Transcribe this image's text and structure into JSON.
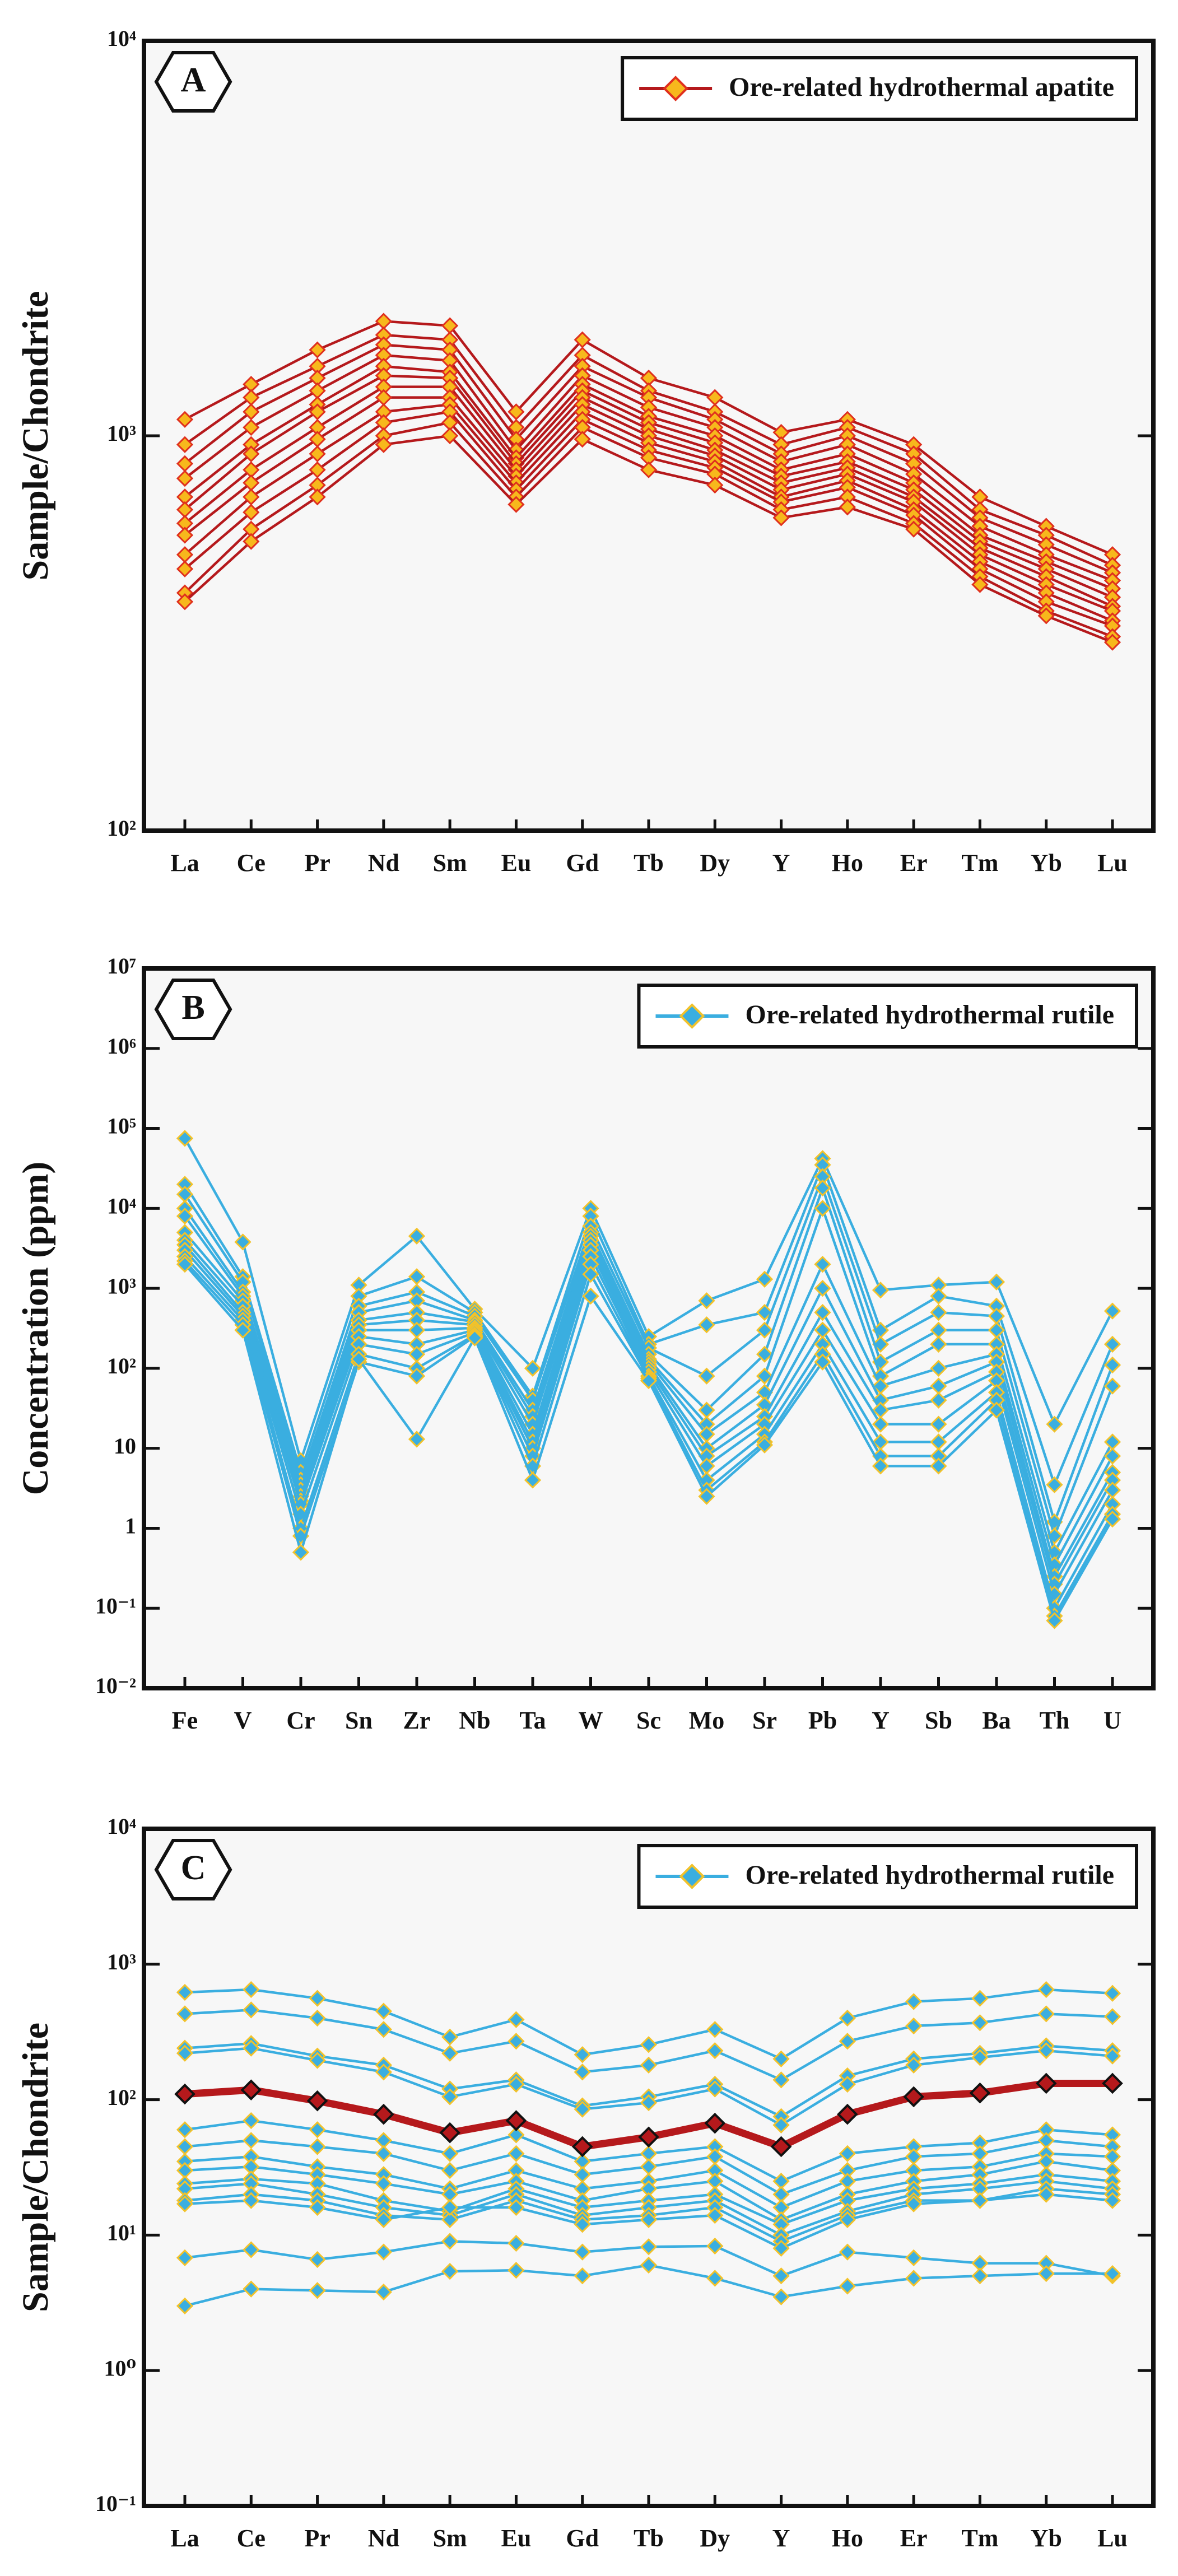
{
  "chart_data": [
    {
      "type": "line",
      "panel_label": "A",
      "ylabel": "Sample/Chondrite",
      "log_scale": true,
      "legend": "Ore-related hydrothermal apatite",
      "legend_position": "upper right",
      "color": "#b5191c",
      "marker_fill": "#f7b81c",
      "marker_edge": "#e0301e",
      "categories": [
        "La",
        "Ce",
        "Pr",
        "Nd",
        "Sm",
        "Eu",
        "Gd",
        "Tb",
        "Dy",
        "Y",
        "Ho",
        "Er",
        "Tm",
        "Yb",
        "Lu"
      ],
      "ylim": [
        100,
        10000
      ],
      "yticks": [
        {
          "value": 100,
          "label": "10²"
        },
        {
          "value": 1000,
          "label": "10³"
        },
        {
          "value": 10000,
          "label": "10⁴"
        }
      ],
      "series": [
        {
          "values": [
            1100,
            1350,
            1650,
            1950,
            1900,
            1150,
            1750,
            1400,
            1250,
            1020,
            1100,
            950,
            700,
            590,
            500
          ]
        },
        {
          "values": [
            950,
            1250,
            1500,
            1800,
            1750,
            1050,
            1600,
            1300,
            1150,
            950,
            1050,
            900,
            650,
            560,
            470
          ]
        },
        {
          "values": [
            850,
            1150,
            1400,
            1700,
            1650,
            980,
            1500,
            1250,
            1100,
            900,
            1000,
            850,
            620,
            530,
            450
          ]
        },
        {
          "values": [
            780,
            1050,
            1300,
            1600,
            1550,
            920,
            1420,
            1180,
            1050,
            860,
            950,
            800,
            590,
            500,
            430
          ]
        },
        {
          "values": [
            700,
            950,
            1200,
            1500,
            1450,
            880,
            1350,
            1120,
            1000,
            820,
            900,
            760,
            560,
            480,
            410
          ]
        },
        {
          "values": [
            650,
            900,
            1150,
            1420,
            1400,
            850,
            1300,
            1080,
            960,
            790,
            860,
            730,
            540,
            460,
            390
          ]
        },
        {
          "values": [
            600,
            820,
            1050,
            1330,
            1330,
            820,
            1250,
            1040,
            920,
            760,
            830,
            700,
            520,
            440,
            370
          ]
        },
        {
          "values": [
            560,
            760,
            980,
            1250,
            1250,
            790,
            1200,
            1000,
            890,
            730,
            800,
            680,
            500,
            420,
            360
          ]
        },
        {
          "values": [
            500,
            700,
            900,
            1150,
            1200,
            760,
            1150,
            960,
            860,
            700,
            770,
            650,
            480,
            400,
            340
          ]
        },
        {
          "values": [
            460,
            640,
            820,
            1080,
            1150,
            730,
            1100,
            920,
            830,
            680,
            740,
            630,
            460,
            380,
            330
          ]
        },
        {
          "values": [
            400,
            580,
            750,
            1000,
            1080,
            700,
            1050,
            880,
            800,
            650,
            700,
            600,
            440,
            360,
            310
          ]
        },
        {
          "values": [
            380,
            540,
            700,
            950,
            1000,
            670,
            980,
            820,
            750,
            620,
            660,
            580,
            420,
            350,
            300
          ]
        }
      ]
    },
    {
      "type": "line",
      "panel_label": "B",
      "ylabel": "Concentration (ppm)",
      "log_scale": true,
      "legend": "Ore-related hydrothermal rutile",
      "legend_position": "upper right",
      "color": "#3aaee0",
      "marker_fill": "#3aaee0",
      "marker_edge": "#f2c22a",
      "categories": [
        "Fe",
        "V",
        "Cr",
        "Sn",
        "Zr",
        "Nb",
        "Ta",
        "W",
        "Sc",
        "Mo",
        "Sr",
        "Pb",
        "Y",
        "Sb",
        "Ba",
        "Th",
        "U"
      ],
      "ylim": [
        0.01,
        10000000
      ],
      "yticks": [
        {
          "value": 0.01,
          "label": "10⁻²"
        },
        {
          "value": 0.1,
          "label": "10⁻¹"
        },
        1,
        10,
        {
          "value": 100,
          "label": "10²"
        },
        {
          "value": 1000,
          "label": "10³"
        },
        {
          "value": 10000,
          "label": "10⁴"
        },
        {
          "value": 100000,
          "label": "10⁵"
        },
        {
          "value": 1000000,
          "label": "10⁶"
        },
        {
          "value": 10000000,
          "label": "10⁷"
        }
      ],
      "series": [
        {
          "values": [
            75000,
            3800,
            7,
            1100,
            4500,
            550,
            100,
            10000,
            250,
            700,
            1300,
            42000,
            950,
            1100,
            1200,
            20,
            520
          ]
        },
        {
          "values": [
            20000,
            1400,
            5,
            800,
            1400,
            500,
            45,
            8000,
            200,
            350,
            500,
            35000,
            300,
            800,
            600,
            3.5,
            200
          ]
        },
        {
          "values": [
            15000,
            1200,
            4,
            600,
            900,
            450,
            40,
            6000,
            180,
            80,
            300,
            25000,
            200,
            500,
            450,
            1.2,
            110
          ]
        },
        {
          "values": [
            10000,
            900,
            3.5,
            500,
            700,
            400,
            30,
            5000,
            150,
            30,
            150,
            18000,
            120,
            300,
            300,
            0.8,
            60
          ]
        },
        {
          "values": [
            8000,
            800,
            3,
            400,
            500,
            380,
            25,
            4500,
            130,
            20,
            80,
            10000,
            80,
            200,
            200,
            0.5,
            12
          ]
        },
        {
          "values": [
            5000,
            700,
            2.5,
            350,
            400,
            350,
            20,
            4000,
            120,
            15,
            50,
            2000,
            60,
            100,
            150,
            0.35,
            8
          ]
        },
        {
          "values": [
            4000,
            600,
            2.2,
            300,
            300,
            320,
            15,
            3500,
            110,
            10,
            35,
            1000,
            40,
            60,
            120,
            0.25,
            5
          ]
        },
        {
          "values": [
            3500,
            500,
            2,
            250,
            200,
            300,
            12,
            3000,
            100,
            8,
            25,
            500,
            30,
            40,
            90,
            0.2,
            4
          ]
        },
        {
          "values": [
            3000,
            450,
            1.5,
            200,
            150,
            280,
            10,
            2500,
            90,
            6,
            20,
            300,
            20,
            20,
            70,
            0.15,
            3
          ]
        },
        {
          "values": [
            2500,
            400,
            1,
            150,
            100,
            260,
            8,
            2000,
            80,
            4,
            15,
            200,
            12,
            12,
            50,
            0.1,
            2
          ]
        },
        {
          "values": [
            2200,
            350,
            0.8,
            120,
            80,
            250,
            6,
            1500,
            75,
            3,
            12,
            150,
            8,
            8,
            40,
            0.08,
            1.5
          ]
        },
        {
          "values": [
            2000,
            300,
            0.5,
            130,
            13,
            240,
            4,
            800,
            70,
            2.5,
            11,
            120,
            6,
            6,
            30,
            0.07,
            1.3
          ]
        }
      ]
    },
    {
      "type": "line",
      "panel_label": "C",
      "ylabel": "Sample/Chondrite",
      "log_scale": true,
      "legend": "Ore-related hydrothermal rutile",
      "legend_position": "upper right",
      "color": "#3aaee0",
      "marker_fill": "#3aaee0",
      "marker_edge": "#f2c22a",
      "categories": [
        "La",
        "Ce",
        "Pr",
        "Nd",
        "Sm",
        "Eu",
        "Gd",
        "Tb",
        "Dy",
        "Y",
        "Ho",
        "Er",
        "Tm",
        "Yb",
        "Lu"
      ],
      "ylim": [
        0.1,
        10000
      ],
      "yticks": [
        {
          "value": 0.1,
          "label": "10⁻¹"
        },
        {
          "value": 1,
          "label": "10⁰"
        },
        {
          "value": 10,
          "label": "10¹"
        },
        {
          "value": 100,
          "label": "10²"
        },
        {
          "value": 1000,
          "label": "10³"
        },
        {
          "value": 10000,
          "label": "10⁴"
        }
      ],
      "series": [
        {
          "values": [
            620,
            650,
            560,
            450,
            290,
            390,
            215,
            255,
            330,
            200,
            400,
            530,
            560,
            650,
            610
          ]
        },
        {
          "values": [
            430,
            460,
            400,
            330,
            220,
            270,
            160,
            180,
            230,
            140,
            270,
            350,
            370,
            430,
            410
          ]
        },
        {
          "values": [
            240,
            260,
            210,
            180,
            120,
            140,
            90,
            105,
            130,
            75,
            150,
            200,
            220,
            250,
            230
          ]
        },
        {
          "values": [
            220,
            240,
            195,
            160,
            105,
            130,
            85,
            95,
            120,
            65,
            130,
            180,
            205,
            230,
            210
          ]
        },
        {
          "values": [
            60,
            70,
            60,
            50,
            40,
            55,
            35,
            40,
            45,
            25,
            40,
            45,
            48,
            60,
            55
          ]
        },
        {
          "values": [
            45,
            50,
            45,
            40,
            30,
            40,
            28,
            32,
            38,
            20,
            30,
            38,
            40,
            50,
            45
          ]
        },
        {
          "values": [
            35,
            38,
            32,
            28,
            22,
            30,
            22,
            25,
            30,
            16,
            25,
            30,
            32,
            40,
            38
          ]
        },
        {
          "values": [
            30,
            32,
            28,
            24,
            20,
            25,
            18,
            22,
            25,
            13,
            20,
            25,
            28,
            35,
            30
          ]
        },
        {
          "values": [
            24,
            26,
            24,
            18,
            15,
            22,
            16,
            18,
            20,
            12,
            18,
            22,
            24,
            28,
            25
          ]
        },
        {
          "values": [
            22,
            24,
            20,
            16,
            14,
            20,
            14,
            16,
            18,
            10,
            15,
            20,
            22,
            25,
            22
          ]
        },
        {
          "values": [
            18,
            20,
            18,
            14,
            13,
            18,
            13,
            14,
            16,
            9,
            14,
            18,
            18,
            22,
            20
          ]
        },
        {
          "values": [
            17,
            18,
            16,
            13,
            16,
            16,
            12,
            13,
            14,
            8,
            13,
            17,
            18,
            20,
            18
          ]
        },
        {
          "values": [
            6.8,
            7.8,
            6.6,
            7.5,
            9,
            8.7,
            7.5,
            8.2,
            8.3,
            5,
            7.5,
            6.8,
            6.2,
            6.2,
            5
          ]
        },
        {
          "values": [
            3,
            4,
            3.9,
            3.8,
            5.4,
            5.5,
            5,
            6,
            4.8,
            3.5,
            4.2,
            4.8,
            5,
            5.2,
            5.2
          ]
        },
        {
          "values": [
            110,
            118,
            98,
            78,
            57,
            70,
            45,
            53,
            67,
            45,
            78,
            105,
            112,
            132,
            132
          ],
          "color": "#b5191c",
          "marker_fill": "#b5191c",
          "marker_edge": "#111111"
        }
      ]
    }
  ]
}
